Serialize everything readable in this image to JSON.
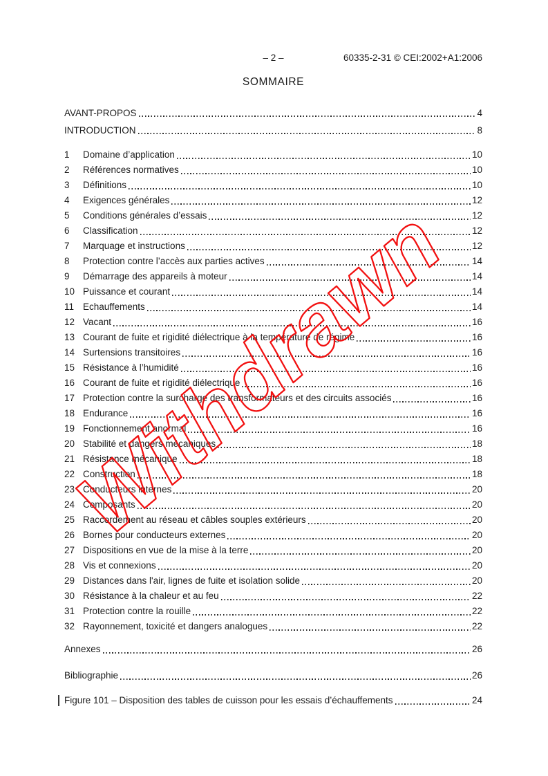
{
  "header": {
    "page_marker": "– 2 –",
    "doc_ref": "60335-2-31 © CEI:2002+A1:2006"
  },
  "title": "SOMMAIRE",
  "front_matter": [
    {
      "label": "AVANT-PROPOS",
      "page": "4"
    },
    {
      "label": "INTRODUCTION",
      "page": "8"
    }
  ],
  "sections": [
    {
      "num": "1",
      "title": "Domaine d’application",
      "page": "10"
    },
    {
      "num": "2",
      "title": "Références normatives",
      "page": "10"
    },
    {
      "num": "3",
      "title": "Définitions",
      "page": "10"
    },
    {
      "num": "4",
      "title": "Exigences générales",
      "page": "12"
    },
    {
      "num": "5",
      "title": "Conditions générales d’essais",
      "page": "12"
    },
    {
      "num": "6",
      "title": "Classification",
      "page": "12"
    },
    {
      "num": "7",
      "title": "Marquage et instructions",
      "page": "12"
    },
    {
      "num": "8",
      "title": "Protection contre l’accès aux parties actives",
      "page": "14"
    },
    {
      "num": "9",
      "title": "Démarrage des appareils à moteur",
      "page": "14"
    },
    {
      "num": "10",
      "title": "Puissance et courant",
      "page": "14"
    },
    {
      "num": "11",
      "title": "Echauffements",
      "page": "14"
    },
    {
      "num": "12",
      "title": "Vacant",
      "page": "16"
    },
    {
      "num": "13",
      "title": "Courant de fuite et rigidité diélectrique à la température de régime",
      "page": "16"
    },
    {
      "num": "14",
      "title": "Surtensions transitoires",
      "page": "16"
    },
    {
      "num": "15",
      "title": "Résistance à l’humidité",
      "page": "16"
    },
    {
      "num": "16",
      "title": "Courant de fuite et rigidité diélectrique",
      "page": "16"
    },
    {
      "num": "17",
      "title": "Protection contre la surcharge des transformateurs et des circuits associés",
      "page": "16"
    },
    {
      "num": "18",
      "title": "Endurance",
      "page": "16"
    },
    {
      "num": "19",
      "title": "Fonctionnement anormal",
      "page": "16"
    },
    {
      "num": "20",
      "title": "Stabilité et dangers mécaniques",
      "page": "18"
    },
    {
      "num": "21",
      "title": "Résistance mécanique",
      "page": "18"
    },
    {
      "num": "22",
      "title": "Construction",
      "page": "18"
    },
    {
      "num": "23",
      "title": "Conducteurs internes",
      "page": "20"
    },
    {
      "num": "24",
      "title": "Composants",
      "page": "20"
    },
    {
      "num": "25",
      "title": "Raccordement au réseau et câbles souples extérieurs",
      "page": "20"
    },
    {
      "num": "26",
      "title": "Bornes pour conducteurs externes",
      "page": "20"
    },
    {
      "num": "27",
      "title": "Dispositions en vue de la mise à la terre",
      "page": "20"
    },
    {
      "num": "28",
      "title": "Vis et connexions",
      "page": "20"
    },
    {
      "num": "29",
      "title": "Distances dans l'air, lignes de fuite et isolation solide",
      "page": "20"
    },
    {
      "num": "30",
      "title": "Résistance à la chaleur et au feu",
      "page": "22"
    },
    {
      "num": "31",
      "title": "Protection contre la rouille",
      "page": "22"
    },
    {
      "num": "32",
      "title": "Rayonnement, toxicité et dangers analogues",
      "page": "22"
    }
  ],
  "back_matter": [
    {
      "label": "Annexes",
      "page": "26"
    },
    {
      "label": "Bibliographie",
      "page": "26"
    }
  ],
  "figure_list": [
    {
      "label": "Figure 101 – Disposition des tables de cuisson pour les essais d’échauffements",
      "page": "24",
      "change_marked": true
    }
  ],
  "watermark": {
    "text": "Withdrawn",
    "color": "#f21010"
  },
  "colors": {
    "ink": "#1c1c1c",
    "watermark_red": "#f21010"
  }
}
